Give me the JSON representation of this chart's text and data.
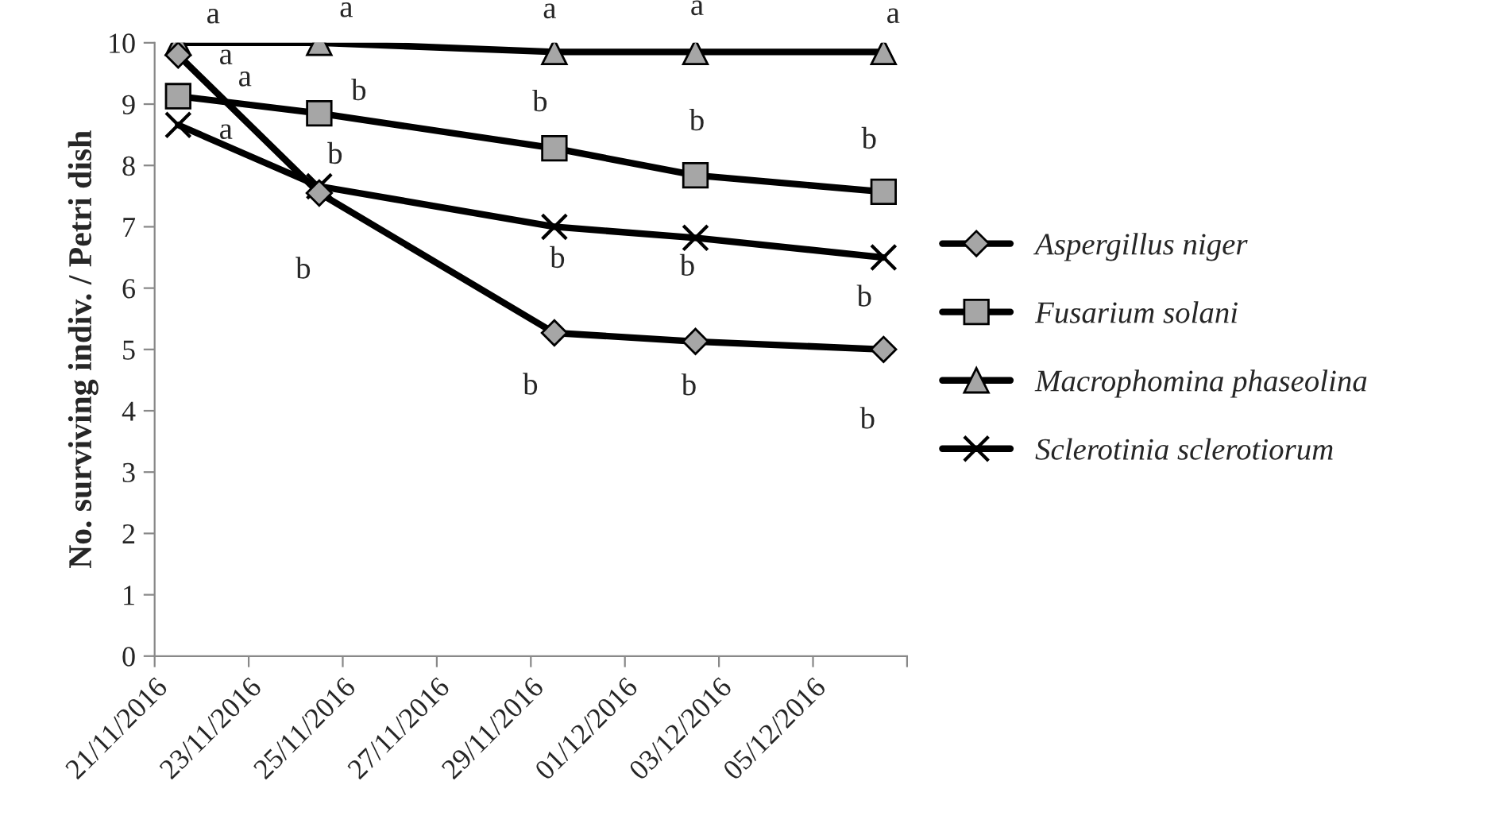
{
  "chart_data": {
    "type": "line",
    "ylabel": "No. surviving indiv. / Petri dish",
    "x": [
      "2016-11-21T12:00",
      "2016-11-24T12:00",
      "2016-11-29T12:00",
      "2016-12-02T12:00",
      "2016-12-06T12:00"
    ],
    "series": [
      {
        "name": "Aspergillus niger",
        "color": "#000000",
        "marker": "diamond",
        "values": [
          9.8,
          7.55,
          5.27,
          5.13,
          5.0
        ]
      },
      {
        "name": "Fusarium solani",
        "color": "#000000",
        "marker": "square",
        "values": [
          9.13,
          8.85,
          8.28,
          7.84,
          7.57
        ]
      },
      {
        "name": "Macrophomina phaseolina",
        "color": "#000000",
        "marker": "triangle",
        "values": [
          10.0,
          10.0,
          9.85,
          9.85,
          9.85
        ]
      },
      {
        "name": "Sclerotinia sclerotiorum",
        "color": "#000000",
        "marker": "cross",
        "values": [
          8.66,
          7.66,
          7.0,
          6.82,
          6.5
        ]
      }
    ],
    "xlim": [
      "2016-11-21",
      "2016-12-07"
    ],
    "xticks": [
      {
        "value": "2016-11-21",
        "label": "21/11/2016"
      },
      {
        "value": "2016-11-23",
        "label": "23/11/2016"
      },
      {
        "value": "2016-11-25",
        "label": "25/11/2016"
      },
      {
        "value": "2016-11-27",
        "label": "27/11/2016"
      },
      {
        "value": "2016-11-29",
        "label": "29/11/2016"
      },
      {
        "value": "2016-12-01",
        "label": "01/12/2016"
      },
      {
        "value": "2016-12-03",
        "label": "03/12/2016"
      },
      {
        "value": "2016-12-05",
        "label": "05/12/2016"
      },
      {
        "value": "2016-12-07",
        "label": null
      }
    ],
    "ylim": [
      0,
      10
    ],
    "yticks": [
      0,
      1,
      2,
      3,
      4,
      5,
      6,
      7,
      8,
      9,
      10
    ],
    "grid": false,
    "legend": "right",
    "line_style": "solid",
    "annotations": [
      {
        "text": "a",
        "x": "2016-11-21T12:00",
        "y": 10.0
      },
      {
        "text": "a",
        "x": "2016-11-24T12:00",
        "y": 10.0
      },
      {
        "text": "a",
        "x": "2016-11-29T12:00",
        "y": 9.85
      },
      {
        "text": "a",
        "x": "2016-12-02T12:00",
        "y": 9.85
      },
      {
        "text": "a",
        "x": "2016-12-06T12:00",
        "y": 9.85
      },
      {
        "text": "a",
        "x": "2016-11-21T12:00",
        "y": 9.8
      },
      {
        "text": "a",
        "x": "2016-11-21T12:00",
        "y": 9.13
      },
      {
        "text": "a",
        "x": "2016-11-21T12:00",
        "y": 8.66
      },
      {
        "text": "b",
        "x": "2016-11-24T12:00",
        "y": 8.85
      },
      {
        "text": "b",
        "x": "2016-11-24T12:00",
        "y": 7.66
      },
      {
        "text": "b",
        "x": "2016-11-24T12:00",
        "y": 7.55
      },
      {
        "text": "b",
        "x": "2016-11-29T12:00",
        "y": 8.28
      },
      {
        "text": "b",
        "x": "2016-12-02T12:00",
        "y": 7.84
      },
      {
        "text": "b",
        "x": "2016-12-06T12:00",
        "y": 7.57
      },
      {
        "text": "b",
        "x": "2016-11-29T12:00",
        "y": 7.0
      },
      {
        "text": "b",
        "x": "2016-12-02T12:00",
        "y": 6.82
      },
      {
        "text": "b",
        "x": "2016-12-06T12:00",
        "y": 6.5
      },
      {
        "text": "b",
        "x": "2016-11-29T12:00",
        "y": 5.27
      },
      {
        "text": "b",
        "x": "2016-12-02T12:00",
        "y": 5.13
      },
      {
        "text": "b",
        "x": "2016-12-06T12:00",
        "y": 5.0
      }
    ]
  }
}
